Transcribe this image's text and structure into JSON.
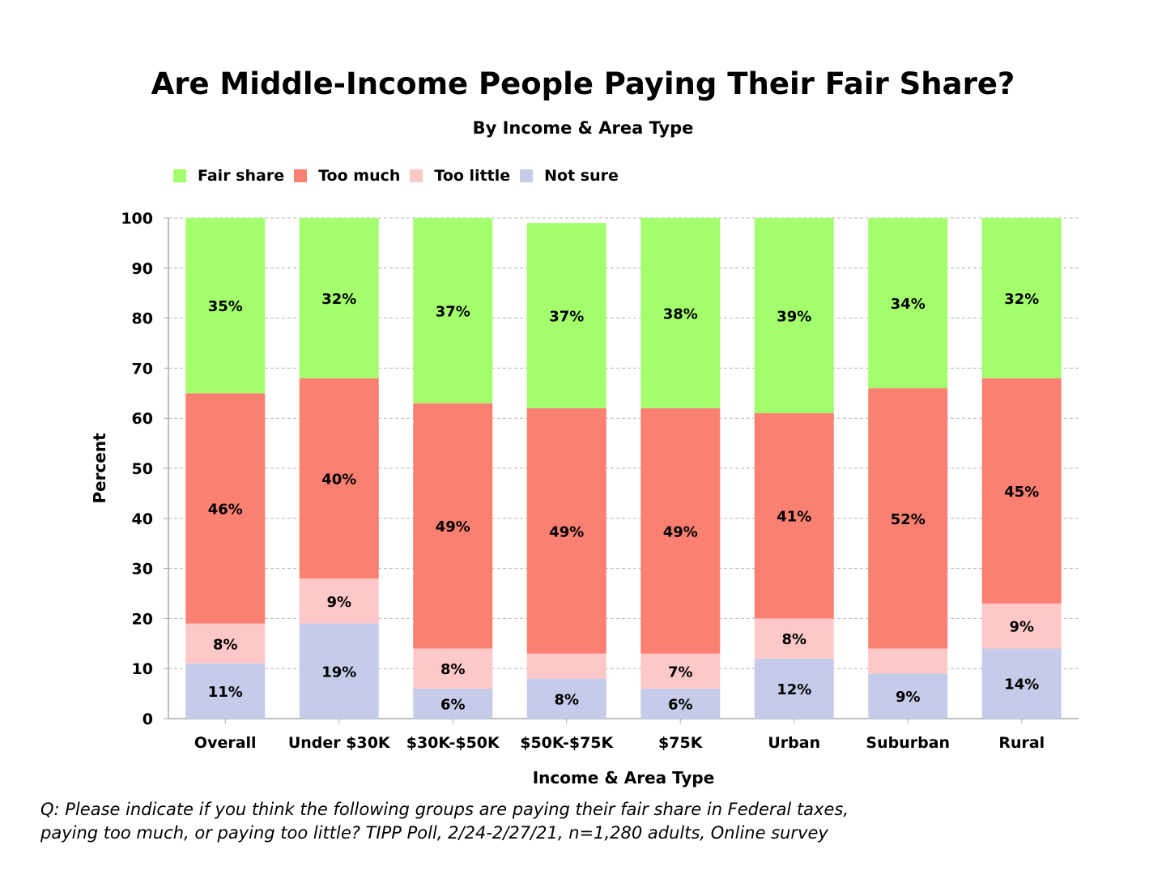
{
  "chart_data": {
    "type": "bar",
    "stacked": true,
    "title": "Are Middle-Income People Paying Their Fair Share?",
    "subtitle": "By Income & Area Type",
    "xlabel": "Income & Area Type",
    "ylabel": "Percent",
    "ylim": [
      0,
      100
    ],
    "yticks": [
      0,
      10,
      20,
      30,
      40,
      50,
      60,
      70,
      80,
      90,
      100
    ],
    "grid": true,
    "legend_position": "top-left",
    "categories": [
      "Overall",
      "Under $30K",
      "$30K-$50K",
      "$50K-$75K",
      "$75K",
      "Urban",
      "Suburban",
      "Rural"
    ],
    "series": [
      {
        "name": "Not sure",
        "color": "#c5cbe8",
        "values": [
          11,
          19,
          6,
          8,
          6,
          12,
          9,
          14
        ],
        "labels": [
          "11%",
          "19%",
          "6%",
          "8%",
          "6%",
          "12%",
          "9%",
          "14%"
        ]
      },
      {
        "name": "Too little",
        "color": "#ffc8c8",
        "values": [
          8,
          9,
          8,
          5,
          7,
          8,
          5,
          9
        ],
        "labels": [
          "8%",
          "9%",
          "8%",
          "",
          "7%",
          "8%",
          "",
          "9%"
        ]
      },
      {
        "name": "Too much",
        "color": "#fa8072",
        "values": [
          46,
          40,
          49,
          49,
          49,
          41,
          52,
          45
        ],
        "labels": [
          "46%",
          "40%",
          "49%",
          "49%",
          "49%",
          "41%",
          "52%",
          "45%"
        ]
      },
      {
        "name": "Fair share",
        "color": "#a3ff6b",
        "values": [
          35,
          32,
          37,
          37,
          38,
          39,
          34,
          32
        ],
        "labels": [
          "35%",
          "32%",
          "37%",
          "37%",
          "38%",
          "39%",
          "34%",
          "32%"
        ]
      }
    ]
  },
  "legend": [
    {
      "label": "Fair share",
      "color": "#a3ff6b"
    },
    {
      "label": "Too much",
      "color": "#fa8072"
    },
    {
      "label": "Too little",
      "color": "#ffc8c8"
    },
    {
      "label": "Not sure",
      "color": "#c5cbe8"
    }
  ],
  "footnote": {
    "line1": "Q:  Please indicate if you think the following groups are paying their fair share in Federal taxes,",
    "line2": "paying too much, or paying too little?  TIPP Poll, 2/24-2/27/21, n=1,280 adults, Online survey"
  }
}
